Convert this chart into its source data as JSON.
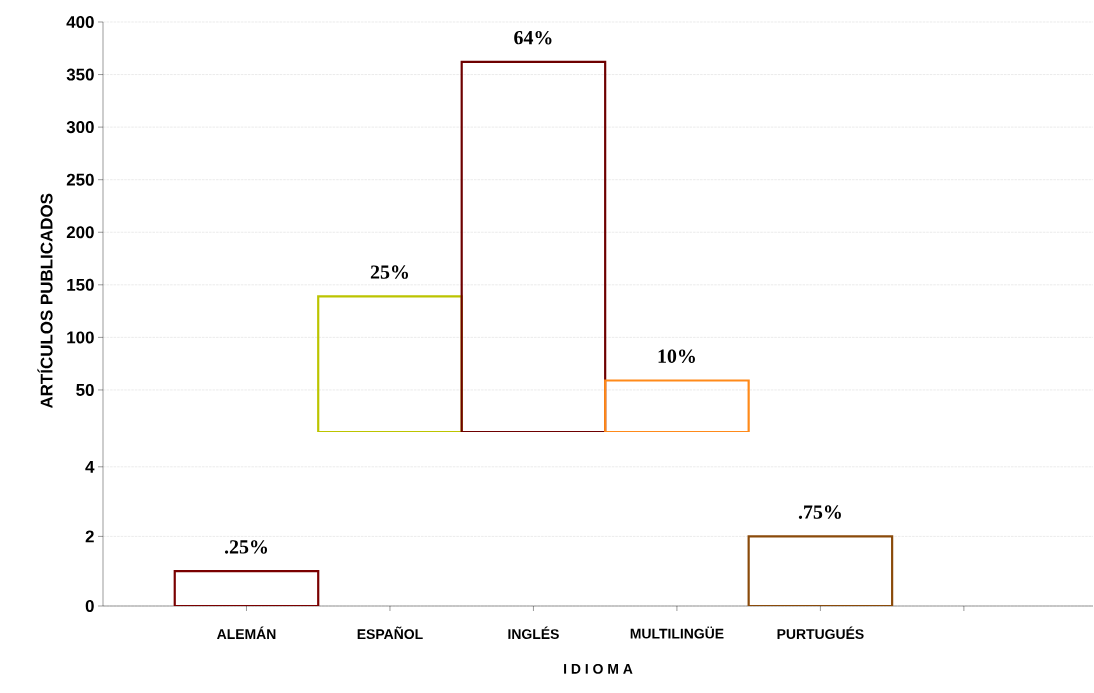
{
  "chart_data": [
    {
      "type": "bar",
      "ylabel": "ARTÍCULOS   PUBLICADOS",
      "categories": [
        "ALEMÁN",
        "ESPAÑOL",
        "INGLÉS",
        "MULTILINGÜE",
        "PURTUGUÉS",
        null
      ],
      "values": [
        null,
        139,
        362,
        59,
        null,
        null
      ],
      "colors": [
        "#7a0000",
        "#bcc400",
        "#6e0000",
        "#ff8a1a",
        "#8a4a0a",
        "#000000"
      ],
      "annotations": [
        {
          "text": "25%",
          "x": "ESPAÑOL",
          "y": 139
        },
        {
          "text": "64%",
          "x": "INGLÉS",
          "y": 362
        },
        {
          "text": "10%",
          "x": "MULTILINGÜE",
          "y": 59
        }
      ],
      "ylim": [
        10,
        400
      ],
      "yticks": [
        50,
        100,
        150,
        200,
        250,
        300,
        350,
        400
      ],
      "grid": "y",
      "tick_labels": "y"
    },
    {
      "type": "bar",
      "xlabel": "I D I O M A",
      "categories": [
        "ALEMÁN",
        "ESPAÑOL",
        "INGLÉS",
        "MULTILINGÜE",
        "PURTUGUÉS",
        null
      ],
      "values": [
        1,
        null,
        null,
        null,
        2,
        null
      ],
      "colors": [
        "#7a0000",
        "#bcc400",
        "#6e0000",
        "#ff8a1a",
        "#8a4a0a",
        "#000000"
      ],
      "annotations": [
        {
          "text": ".25%",
          "x": "ALEMÁN",
          "y": 1
        },
        {
          "text": ".75%",
          "x": "PURTUGUÉS",
          "y": 2
        }
      ],
      "ylim": [
        0,
        5
      ],
      "yticks": [
        0,
        2,
        4
      ],
      "grid": "y"
    }
  ]
}
